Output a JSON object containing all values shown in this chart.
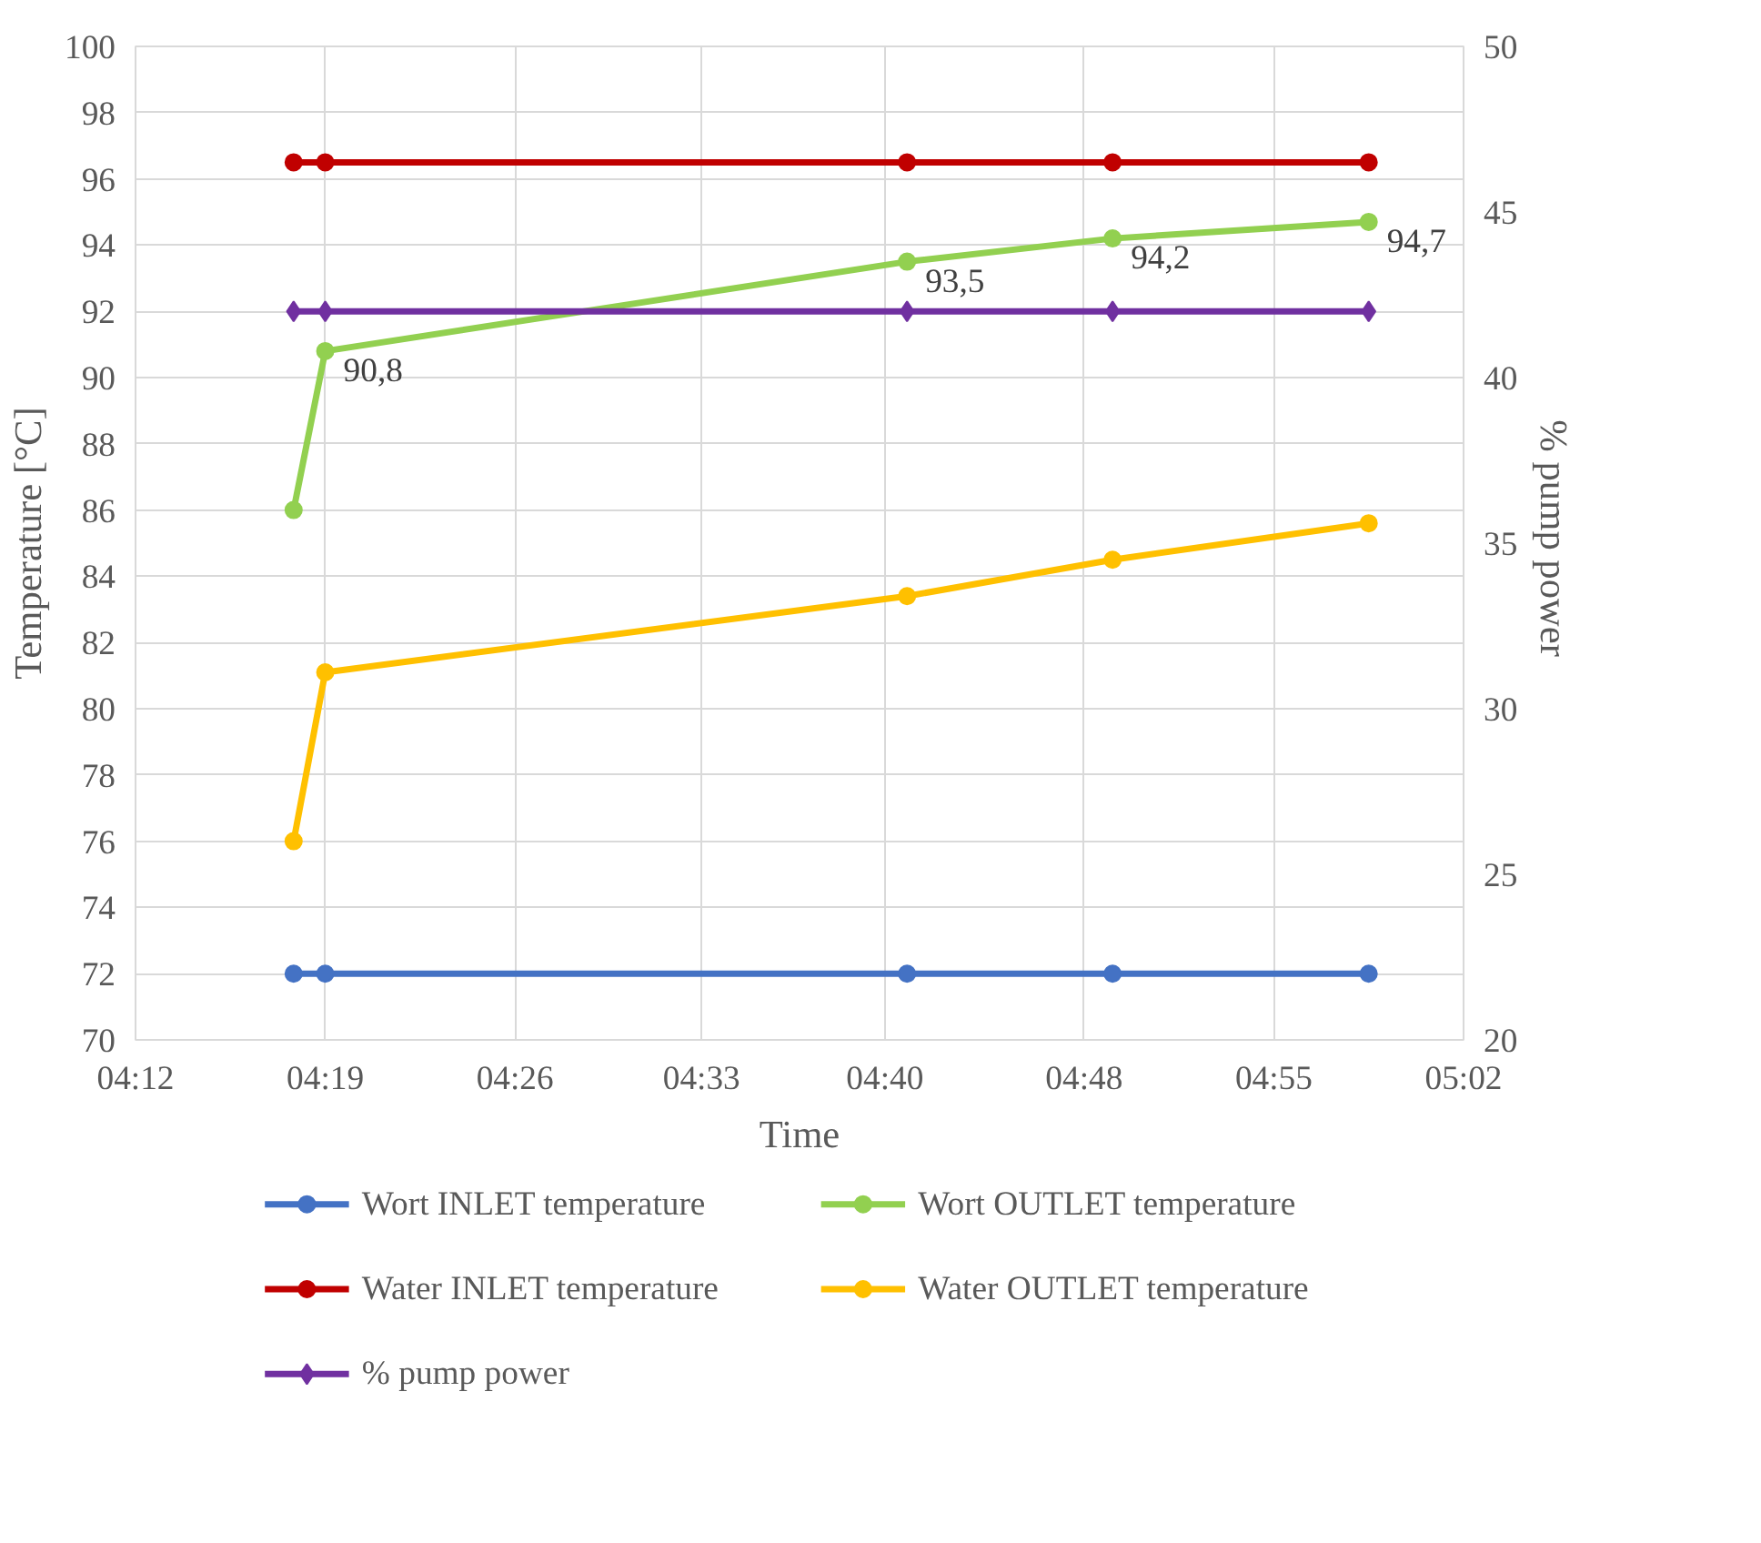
{
  "chart_data": {
    "type": "line",
    "xlabel": "Time",
    "ylabel": "Temperature [°C]",
    "y2label": "%  pump power",
    "x": [
      4.3,
      4.32,
      4.688,
      4.818,
      4.98
    ],
    "xlim": [
      4.2,
      5.04
    ],
    "xticks": [
      {
        "value": 4.2,
        "label": "04:12"
      },
      {
        "value": 4.32,
        "label": "04:19"
      },
      {
        "value": 4.44,
        "label": "04:26"
      },
      {
        "value": 4.558,
        "label": "04:33"
      },
      {
        "value": 4.674,
        "label": "04:40"
      },
      {
        "value": 4.8,
        "label": "04:48"
      },
      {
        "value": 4.92,
        "label": "04:55"
      },
      {
        "value": 5.04,
        "label": "05:02"
      }
    ],
    "ylim": [
      70,
      100
    ],
    "yticks": [
      70,
      72,
      74,
      76,
      78,
      80,
      82,
      84,
      86,
      88,
      90,
      92,
      94,
      96,
      98,
      100
    ],
    "y2lim": [
      20,
      50
    ],
    "y2ticks": [
      20,
      25,
      30,
      35,
      40,
      45,
      50
    ],
    "grid": true,
    "legend": "bottom",
    "marker": "circle",
    "line_style": "solid",
    "series": [
      {
        "name": "Wort INLET temperature",
        "color": "#4472c4",
        "values": [
          72,
          72,
          72,
          72,
          72
        ]
      },
      {
        "name": "Wort OUTLET temperature",
        "color": "#92d050",
        "values": [
          86,
          90.8,
          93.5,
          94.2,
          94.7
        ],
        "value_labels": [
          null,
          "90,8",
          "93,5",
          "94,2",
          "94,7"
        ]
      },
      {
        "name": "Water INLET temperature",
        "color": "#c00000",
        "values": [
          96.5,
          96.5,
          96.5,
          96.5,
          96.5
        ]
      },
      {
        "name": "Water OUTLET temperature",
        "color": "#ffc000",
        "values": [
          76,
          81.1,
          83.4,
          84.5,
          85.6
        ]
      },
      {
        "name": "% pump power",
        "color": "#7030a0",
        "values": [
          42,
          42,
          42,
          42,
          42
        ],
        "axis": "y2",
        "marker": "diamond"
      }
    ]
  }
}
